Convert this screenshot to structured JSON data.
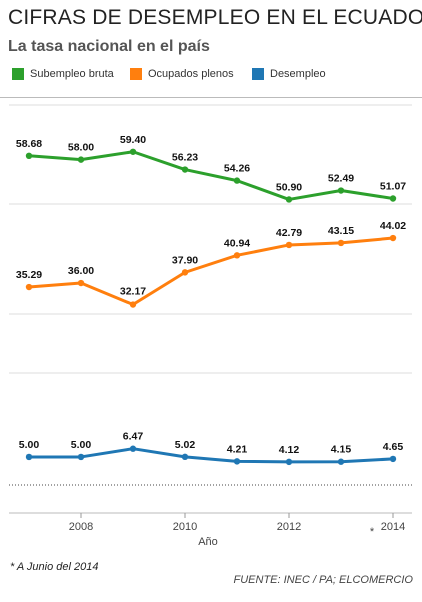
{
  "title": "CIFRAS DE DESEMPLEO EN EL ECUADOR",
  "subtitle": "La tasa nacional en el país",
  "footnote": "* A Junio del 2014",
  "source": "FUENTE: INEC / PA; ELCOMERCIO",
  "chart_data": {
    "type": "line",
    "xlabel": "Año",
    "x": [
      2007,
      2008,
      2009,
      2010,
      2011,
      2012,
      2013,
      2014
    ],
    "xticks": [
      2008,
      2010,
      2012,
      2014
    ],
    "xlim": [
      2006.5,
      2014.5
    ],
    "asterisk_tick": 2014,
    "asterisk": "*",
    "grid": "horizontal",
    "legend_position": "top",
    "series": [
      {
        "name": "Subempleo bruta",
        "color": "#2ca02c",
        "values": [
          58.68,
          58.0,
          59.4,
          56.23,
          54.26,
          50.9,
          52.49,
          51.07
        ],
        "labels": [
          "58.68",
          "58.00",
          "59.40",
          "56.23",
          "54.26",
          "50.90",
          "52.49",
          "51.07"
        ]
      },
      {
        "name": "Ocupados plenos",
        "color": "#ff7f0e",
        "values": [
          35.29,
          36.0,
          32.17,
          37.9,
          40.94,
          42.79,
          43.15,
          44.02
        ],
        "labels": [
          "35.29",
          "36.00",
          "32.17",
          "37.90",
          "40.94",
          "42.79",
          "43.15",
          "44.02"
        ]
      },
      {
        "name": "Desempleo",
        "color": "#1f77b4",
        "values": [
          5.0,
          5.0,
          6.47,
          5.02,
          4.21,
          4.12,
          4.15,
          4.65
        ],
        "labels": [
          "5.00",
          "5.00",
          "6.47",
          "5.02",
          "4.21",
          "4.12",
          "4.15",
          "4.65"
        ]
      }
    ]
  }
}
